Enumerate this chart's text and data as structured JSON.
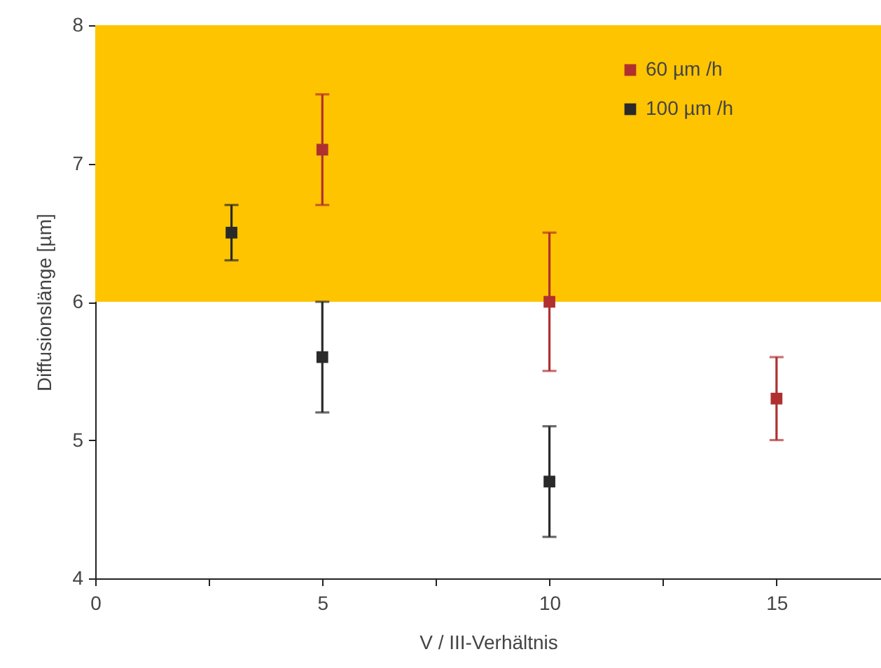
{
  "chart_data": {
    "type": "scatter",
    "xlabel": "V / III-Verhältnis",
    "ylabel": "Diffusionslänge [µm]",
    "xlim": [
      0,
      17.3
    ],
    "xticks": [
      0,
      {
        "value": 2.5,
        "label": null
      },
      5,
      {
        "value": 7.5,
        "label": null
      },
      10,
      {
        "value": 12.5,
        "label": null
      },
      15
    ],
    "ylim": [
      4,
      8
    ],
    "yticks": [
      4,
      5,
      6,
      7,
      8
    ],
    "series": [
      {
        "name": "60 µm /h",
        "color": "#b03030",
        "x": [
          5,
          10,
          15
        ],
        "values": [
          7.1,
          6.0,
          5.3
        ],
        "errors": [
          [
            6.7,
            7.5
          ],
          [
            5.5,
            6.5
          ],
          [
            5.0,
            5.6
          ]
        ]
      },
      {
        "name": "100 µm /h",
        "color": "#2a2a2a",
        "x": [
          3,
          5,
          10
        ],
        "values": [
          6.5,
          5.6,
          4.7
        ],
        "errors": [
          [
            6.3,
            6.7
          ],
          [
            5.2,
            6.0
          ],
          [
            4.3,
            5.1
          ]
        ]
      }
    ],
    "bands": [
      {
        "axis": "y",
        "from": 6,
        "to": 8,
        "color": "#fec400"
      }
    ],
    "marker": "square",
    "grid": false,
    "legend": "top right"
  }
}
